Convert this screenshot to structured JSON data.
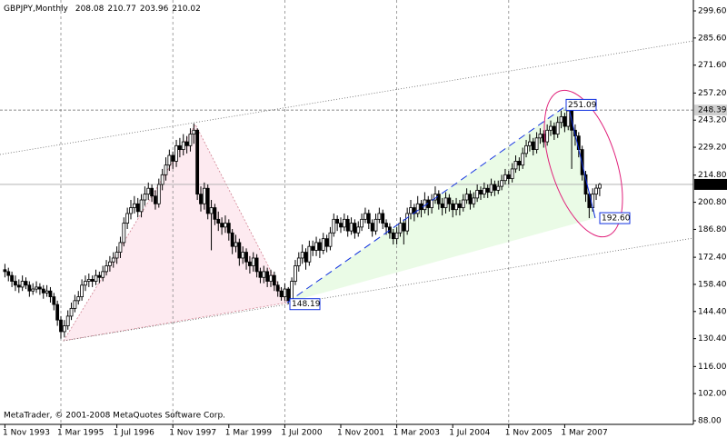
{
  "chart_data": {
    "type": "candlestick",
    "title": "GBPJPY,Monthly",
    "footer": "MetaTrader, © 2001-2008 MetaQuotes Software Corp.",
    "ylim": [
      88,
      299.6
    ],
    "yticks": [
      {
        "value": 299.6,
        "label": "299.60"
      },
      {
        "value": 285.6,
        "label": "285.60"
      },
      {
        "value": 271.6,
        "label": "271.60"
      },
      {
        "value": 257.2,
        "label": "257.20"
      },
      {
        "value": 243.2,
        "label": "243.20"
      },
      {
        "value": 229.2,
        "label": "229.20"
      },
      {
        "value": 214.8,
        "label": "214.80"
      },
      {
        "value": 200.8,
        "label": "200.80"
      },
      {
        "value": 186.8,
        "label": "186.80"
      },
      {
        "value": 172.4,
        "label": "172.40"
      },
      {
        "value": 158.4,
        "label": "158.40"
      },
      {
        "value": 144.4,
        "label": "144.40"
      },
      {
        "value": 130.4,
        "label": "130.40"
      },
      {
        "value": 116,
        "label": "116.00"
      },
      {
        "value": 102,
        "label": "102.00"
      },
      {
        "value": 88,
        "label": "88.00"
      }
    ],
    "hlines": [
      248.39,
      210.02
    ],
    "annotations": [
      251.09,
      {
        "value": 192.6,
        "label": "192.60"
      },
      148.19
    ],
    "categories": [
      "1 Nov 1993",
      null,
      null,
      null,
      null,
      null,
      null,
      null,
      null,
      null,
      null,
      null,
      null,
      null,
      null,
      null,
      "1 Mar 1995",
      null,
      null,
      null,
      null,
      null,
      null,
      null,
      null,
      null,
      null,
      null,
      null,
      null,
      null,
      null,
      "1 Jul 1996",
      null,
      null,
      null,
      null,
      null,
      null,
      null,
      null,
      null,
      null,
      null,
      null,
      null,
      null,
      null,
      "1 Nov 1997",
      null,
      null,
      null,
      null,
      null,
      null,
      null,
      null,
      null,
      null,
      null,
      null,
      null,
      null,
      null,
      "1 Mar 1999",
      null,
      null,
      null,
      null,
      null,
      null,
      null,
      null,
      null,
      null,
      null,
      null,
      null,
      null,
      null,
      "1 Jul 2000",
      null,
      null,
      null,
      null,
      null,
      null,
      null,
      null,
      null,
      null,
      null,
      null,
      null,
      null,
      null,
      "1 Nov 2001",
      null,
      null,
      null,
      null,
      null,
      null,
      null,
      null,
      null,
      null,
      null,
      null,
      null,
      null,
      null,
      "1 Mar 2003",
      null,
      null,
      null,
      null,
      null,
      null,
      null,
      null,
      null,
      null,
      null,
      null,
      null,
      null,
      null,
      "1 Jul 2004",
      null,
      null,
      null,
      null,
      null,
      null,
      null,
      null,
      null,
      null,
      null,
      null,
      null,
      null,
      null,
      "1 Nov 2005",
      null,
      null,
      null,
      null,
      null,
      null,
      null,
      null,
      null,
      null,
      null,
      null,
      null,
      null,
      null,
      "1 Mar 2007",
      null,
      null,
      null,
      null,
      null,
      null,
      null,
      null,
      null,
      null
    ],
    "candles": [
      [
        166,
        169,
        162,
        165
      ],
      [
        165,
        167,
        160,
        163
      ],
      [
        163,
        165,
        157,
        160
      ],
      [
        160,
        163,
        155,
        158
      ],
      [
        158,
        161,
        154,
        157
      ],
      [
        157,
        163,
        155,
        160
      ],
      [
        160,
        162,
        156,
        158
      ],
      [
        158,
        160,
        152,
        155
      ],
      [
        155,
        159,
        153,
        156
      ],
      [
        156,
        160,
        154,
        157
      ],
      [
        157,
        159,
        153,
        156
      ],
      [
        156,
        158,
        151,
        154
      ],
      [
        154,
        158,
        152,
        155
      ],
      [
        155,
        157,
        149,
        152
      ],
      [
        152,
        154,
        145,
        148
      ],
      [
        148,
        150,
        137,
        140
      ],
      [
        140,
        142,
        130.4,
        134
      ],
      [
        134,
        140,
        131,
        137
      ],
      [
        137,
        145,
        135,
        142
      ],
      [
        142,
        149,
        140,
        146
      ],
      [
        146,
        153,
        144,
        150
      ],
      [
        150,
        155,
        148,
        152
      ],
      [
        152,
        161,
        150,
        158
      ],
      [
        158,
        163,
        155,
        160
      ],
      [
        160,
        164,
        157,
        161
      ],
      [
        161,
        163,
        157,
        160
      ],
      [
        160,
        166,
        158,
        163
      ],
      [
        163,
        165,
        159,
        162
      ],
      [
        162,
        168,
        160,
        165
      ],
      [
        165,
        171,
        163,
        168
      ],
      [
        168,
        173,
        165,
        170
      ],
      [
        170,
        175,
        167,
        172
      ],
      [
        172,
        178,
        169,
        175
      ],
      [
        175,
        183,
        172,
        180
      ],
      [
        180,
        193,
        178,
        190
      ],
      [
        190,
        198,
        187,
        195
      ],
      [
        195,
        202,
        192,
        198
      ],
      [
        198,
        204,
        195,
        200
      ],
      [
        200,
        203,
        193,
        196
      ],
      [
        196,
        205,
        193,
        202
      ],
      [
        202,
        209,
        199,
        205
      ],
      [
        205,
        211,
        202,
        208
      ],
      [
        208,
        210,
        201,
        204
      ],
      [
        204,
        207,
        197,
        200
      ],
      [
        200,
        213,
        198,
        210
      ],
      [
        210,
        218,
        207,
        215
      ],
      [
        215,
        224,
        212,
        220
      ],
      [
        220,
        228,
        217,
        225
      ],
      [
        225,
        227,
        218,
        222
      ],
      [
        222,
        233,
        219,
        230
      ],
      [
        230,
        234,
        224,
        228
      ],
      [
        228,
        236,
        225,
        232
      ],
      [
        232,
        235,
        226,
        230
      ],
      [
        230,
        239,
        227,
        236
      ],
      [
        236,
        241.5,
        231,
        238
      ],
      [
        238,
        239,
        202,
        205
      ],
      [
        205,
        209,
        196,
        200
      ],
      [
        200,
        211,
        197,
        208
      ],
      [
        208,
        210,
        192,
        195
      ],
      [
        195,
        202,
        176,
        198
      ],
      [
        198,
        200,
        189,
        192
      ],
      [
        192,
        196,
        186,
        190
      ],
      [
        190,
        193,
        184,
        188
      ],
      [
        188,
        194,
        185,
        190
      ],
      [
        190,
        192,
        181,
        185
      ],
      [
        185,
        187,
        174,
        178
      ],
      [
        178,
        184,
        175,
        180
      ],
      [
        180,
        182,
        168,
        172
      ],
      [
        172,
        178,
        169,
        175
      ],
      [
        175,
        177,
        166,
        170
      ],
      [
        170,
        173,
        164,
        168
      ],
      [
        168,
        175,
        165,
        172
      ],
      [
        172,
        174,
        162,
        165
      ],
      [
        165,
        167,
        159,
        162
      ],
      [
        162,
        168,
        159,
        165
      ],
      [
        165,
        167,
        157,
        160
      ],
      [
        160,
        166,
        157,
        163
      ],
      [
        163,
        165,
        155,
        158
      ],
      [
        158,
        160,
        152,
        155
      ],
      [
        155,
        157,
        150,
        152
      ],
      [
        152,
        159,
        150,
        156
      ],
      [
        156,
        157,
        148.19,
        150
      ],
      [
        150,
        162,
        149,
        160
      ],
      [
        160,
        171,
        158,
        168
      ],
      [
        168,
        175,
        165,
        172
      ],
      [
        172,
        179,
        169,
        175
      ],
      [
        175,
        177,
        166,
        170
      ],
      [
        170,
        181,
        168,
        178
      ],
      [
        178,
        181,
        173,
        176
      ],
      [
        176,
        183,
        173,
        180
      ],
      [
        180,
        182,
        172,
        176
      ],
      [
        176,
        185,
        174,
        182
      ],
      [
        182,
        184,
        175,
        178
      ],
      [
        178,
        188,
        176,
        185
      ],
      [
        185,
        195,
        183,
        192
      ],
      [
        192,
        194,
        186,
        190
      ],
      [
        190,
        193,
        185,
        188
      ],
      [
        188,
        195,
        186,
        192
      ],
      [
        192,
        194,
        183,
        186
      ],
      [
        186,
        193,
        184,
        190
      ],
      [
        190,
        192,
        182,
        185
      ],
      [
        185,
        191,
        183,
        188
      ],
      [
        188,
        195,
        186,
        192
      ],
      [
        192,
        198,
        190,
        195
      ],
      [
        195,
        197,
        187,
        190
      ],
      [
        190,
        192,
        183,
        186
      ],
      [
        186,
        195,
        184,
        192
      ],
      [
        192,
        198,
        190,
        195
      ],
      [
        195,
        197,
        187,
        190
      ],
      [
        190,
        192,
        184,
        188
      ],
      [
        188,
        190,
        182,
        185
      ],
      [
        185,
        187,
        179,
        182
      ],
      [
        182,
        188,
        179,
        185
      ],
      [
        185,
        193,
        183,
        190
      ],
      [
        190,
        192,
        179,
        186
      ],
      [
        186,
        198,
        184,
        195
      ],
      [
        195,
        202,
        192,
        198
      ],
      [
        198,
        200,
        191,
        195
      ],
      [
        195,
        204,
        193,
        200
      ],
      [
        200,
        202,
        193,
        197
      ],
      [
        197,
        206,
        195,
        202
      ],
      [
        202,
        204,
        194,
        198
      ],
      [
        198,
        205,
        195,
        202
      ],
      [
        202,
        209,
        200,
        205
      ],
      [
        205,
        207,
        197,
        200
      ],
      [
        200,
        203,
        194,
        198
      ],
      [
        198,
        206,
        195,
        203
      ],
      [
        203,
        205,
        196,
        200
      ],
      [
        200,
        202,
        193,
        197
      ],
      [
        197,
        203,
        194,
        200
      ],
      [
        200,
        202,
        194,
        198
      ],
      [
        198,
        205,
        196,
        202
      ],
      [
        202,
        208,
        200,
        205
      ],
      [
        205,
        207,
        197,
        200
      ],
      [
        200,
        206,
        198,
        203
      ],
      [
        203,
        210,
        201,
        207
      ],
      [
        207,
        209,
        202,
        205
      ],
      [
        205,
        211,
        203,
        208
      ],
      [
        208,
        210,
        203,
        206
      ],
      [
        206,
        213,
        204,
        210
      ],
      [
        210,
        212,
        204,
        207
      ],
      [
        207,
        212,
        205,
        209
      ],
      [
        209,
        215,
        207,
        212
      ],
      [
        212,
        218,
        210,
        215
      ],
      [
        215,
        217,
        210,
        213
      ],
      [
        213,
        221,
        211,
        218
      ],
      [
        218,
        225,
        216,
        222
      ],
      [
        222,
        224,
        217,
        220
      ],
      [
        220,
        229,
        218,
        226
      ],
      [
        226,
        233,
        224,
        230
      ],
      [
        230,
        236,
        227,
        232
      ],
      [
        232,
        234,
        225,
        228
      ],
      [
        228,
        237,
        226,
        234
      ],
      [
        234,
        239,
        231,
        236
      ],
      [
        236,
        238,
        229,
        232
      ],
      [
        232,
        241,
        230,
        238
      ],
      [
        238,
        243,
        235,
        240
      ],
      [
        240,
        242,
        233,
        236
      ],
      [
        236,
        245,
        234,
        242
      ],
      [
        242,
        248,
        239,
        245
      ],
      [
        245,
        247,
        237,
        240
      ],
      [
        240,
        251.09,
        238,
        248
      ],
      [
        248,
        249,
        218,
        238
      ],
      [
        238,
        241,
        230,
        235
      ],
      [
        235,
        237,
        224,
        228
      ],
      [
        228,
        230,
        212,
        215
      ],
      [
        215,
        217,
        201,
        205
      ],
      [
        205,
        206,
        192.6,
        198
      ],
      [
        198,
        208,
        196,
        205
      ],
      [
        205,
        210,
        202,
        208.08
      ],
      [
        208.08,
        210.77,
        203.96,
        210.02
      ]
    ]
  }
}
